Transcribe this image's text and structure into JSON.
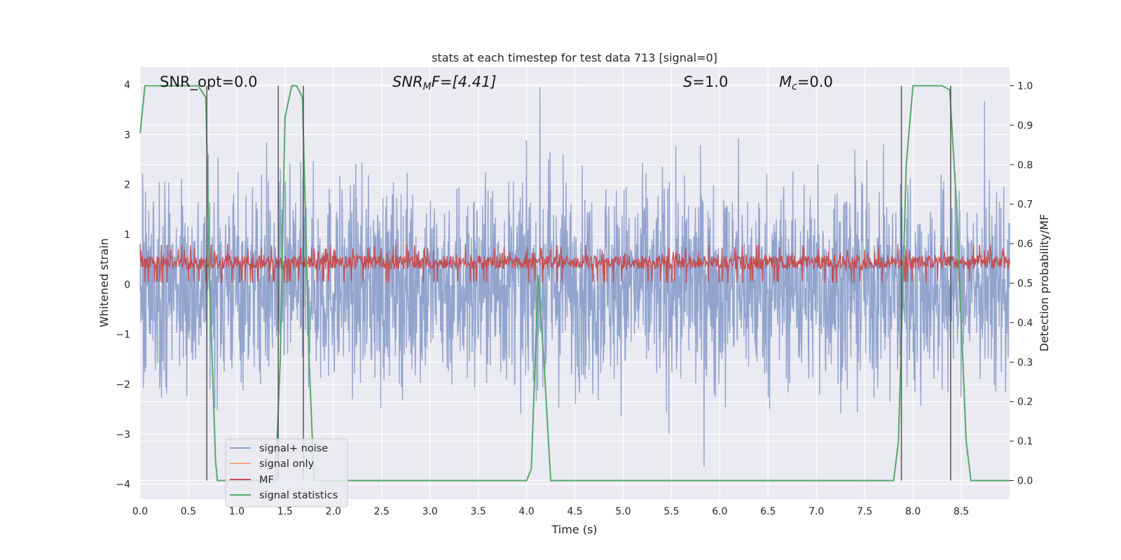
{
  "chart_data": {
    "type": "line",
    "title": "stats at each timestep for test data 713 [signal=0]",
    "xlabel": "Time (s)",
    "ylabel_left": "Whitened strain",
    "ylabel_right": "Detection probability/MF",
    "xlim": [
      0.0,
      9.0
    ],
    "ylim_left": [
      -4.3,
      4.35
    ],
    "ylim_right": [
      -0.047,
      1.047
    ],
    "x_ticks": [
      "0.0",
      "0.5",
      "1.0",
      "1.5",
      "2.0",
      "2.5",
      "3.0",
      "3.5",
      "4.0",
      "4.5",
      "5.0",
      "5.5",
      "6.0",
      "6.5",
      "7.0",
      "7.5",
      "8.0",
      "8.5"
    ],
    "y_ticks_left": [
      "4",
      "3",
      "2",
      "1",
      "0",
      "−1",
      "−2",
      "−3",
      "−4"
    ],
    "y_ticks_right": [
      "1.0",
      "0.9",
      "0.8",
      "0.7",
      "0.6",
      "0.5",
      "0.4",
      "0.3",
      "0.2",
      "0.1",
      "0.0"
    ],
    "grid": true,
    "legend_position": "lower-left",
    "annotations": {
      "snr_opt": "SNR_opt=0.0",
      "snr_mf_sym": "SNR",
      "snr_mf_sub": "M",
      "snr_mf_rest": "F=[4.41]",
      "s_sym": "S",
      "s_rest": "=1.0",
      "mc_sym": "M",
      "mc_sub": "c",
      "mc_rest": "=0.0"
    },
    "series": [
      {
        "name": "signal+ noise",
        "color": "#8da0cb",
        "axis": "left",
        "description_values": "whitened noise, approx range -3.7 to 3.9"
      },
      {
        "name": "signal only",
        "color": "#f4a582",
        "axis": "left",
        "values": []
      },
      {
        "name": "MF",
        "color": "#c44e52",
        "axis": "right",
        "value_range": [
          0.5,
          0.6
        ]
      },
      {
        "name": "signal statistics",
        "color": "#55a868",
        "axis": "right",
        "x": [
          0.0,
          0.05,
          0.1,
          0.6,
          0.68,
          0.72,
          0.78,
          0.8,
          1.0,
          1.4,
          1.45,
          1.5,
          1.57,
          1.62,
          1.68,
          1.75,
          1.8,
          2.4,
          2.5,
          3.5,
          4.0,
          4.05,
          4.12,
          4.18,
          4.25,
          5.0,
          6.0,
          7.0,
          7.8,
          7.85,
          7.93,
          8.0,
          8.3,
          8.38,
          8.45,
          8.55,
          8.6,
          9.0
        ],
        "y": [
          0.88,
          1.0,
          1.0,
          1.0,
          0.97,
          0.5,
          0.05,
          0.0,
          0.0,
          0.0,
          0.3,
          0.92,
          1.0,
          1.0,
          0.97,
          0.3,
          0.0,
          0.0,
          0.0,
          0.0,
          0.0,
          0.03,
          0.52,
          0.3,
          0.0,
          0.0,
          0.0,
          0.0,
          0.0,
          0.1,
          0.8,
          1.0,
          1.0,
          0.99,
          0.7,
          0.1,
          0.0,
          0.0
        ]
      }
    ],
    "vlines_x": [
      0.69,
      1.43,
      1.69,
      7.88,
      8.39
    ]
  }
}
